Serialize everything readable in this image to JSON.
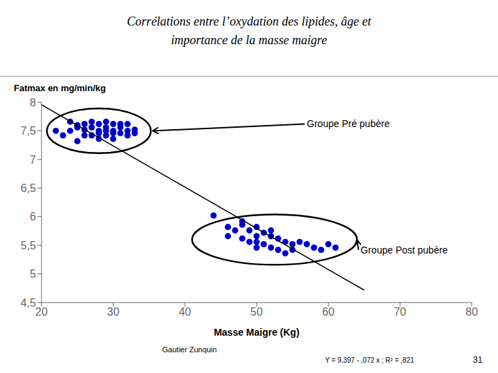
{
  "chart_data": {
    "type": "scatter",
    "title": [
      "Corrélations entre l’oxydation des lipides, âge et",
      "importance de la masse maigre"
    ],
    "subtitle": "Gautier Zunquin",
    "notes": [
      "Y = 9,397 - ,072 x ; R² = ,821",
      "31"
    ],
    "xlabel": "Masse Maigre (Kg)",
    "ylabel": "Fatmax en mg/min/kg",
    "xlim": [
      20,
      80
    ],
    "ylim": [
      4.5,
      8
    ],
    "xticks": [
      20,
      30,
      40,
      50,
      60,
      70,
      80
    ],
    "yticks": [
      {
        "value": 4.5,
        "label": "4,5"
      },
      5,
      {
        "value": 5.5,
        "label": "5,5"
      },
      6,
      {
        "value": 6.5,
        "label": "6,5"
      },
      7,
      {
        "value": 7.5,
        "label": "7,5"
      },
      8
    ],
    "grid": false,
    "series": [
      {
        "type": "scatter",
        "color": "#0000cc",
        "x": [
          22,
          23,
          24,
          25,
          26,
          27,
          27,
          28,
          28,
          28,
          29,
          29,
          29,
          30,
          30,
          30,
          31,
          31,
          32,
          32,
          33,
          24,
          25,
          26,
          27,
          28,
          29,
          30,
          31,
          32,
          33,
          25,
          26
        ],
        "values": [
          7.5,
          7.42,
          7.5,
          7.6,
          7.52,
          7.42,
          7.56,
          7.5,
          7.46,
          7.62,
          7.5,
          7.42,
          7.56,
          7.5,
          7.46,
          7.62,
          7.46,
          7.56,
          7.42,
          7.5,
          7.46,
          7.66,
          7.56,
          7.42,
          7.66,
          7.36,
          7.66,
          7.36,
          7.62,
          7.62,
          7.52,
          7.32,
          7.62
        ]
      },
      {
        "type": "scatter",
        "color": "#0000cc",
        "x": [
          44,
          46,
          47,
          48,
          48,
          49,
          49,
          50,
          50,
          50,
          51,
          51,
          52,
          52,
          53,
          53,
          54,
          54,
          55,
          55,
          56,
          57,
          58,
          59,
          60,
          61,
          48,
          50,
          52,
          46
        ],
        "values": [
          6.02,
          5.82,
          5.76,
          5.92,
          5.62,
          5.76,
          5.56,
          5.82,
          5.56,
          5.46,
          5.72,
          5.52,
          5.66,
          5.46,
          5.62,
          5.42,
          5.56,
          5.36,
          5.52,
          5.42,
          5.56,
          5.52,
          5.46,
          5.42,
          5.52,
          5.46,
          5.86,
          5.66,
          5.76,
          5.66
        ]
      },
      {
        "type": "line",
        "color": "#000000",
        "x": [
          20,
          65
        ],
        "values": [
          7.957,
          4.717
        ]
      }
    ],
    "ellipses": [
      {
        "cx": 28.0,
        "cy": 7.5,
        "width": 14.5,
        "height": 0.78
      },
      {
        "cx": 52.5,
        "cy": 5.6,
        "width": 23.0,
        "height": 0.88
      }
    ],
    "annotations": [
      {
        "text": "Groupe Pré pubère",
        "x": 35.5,
        "y": 7.5,
        "text_x": 57,
        "text_y": 7.62
      },
      {
        "text": "Groupe Post pubère",
        "x": 64.0,
        "y": 5.6,
        "text_x": 64.5,
        "text_y": 5.42
      }
    ]
  }
}
